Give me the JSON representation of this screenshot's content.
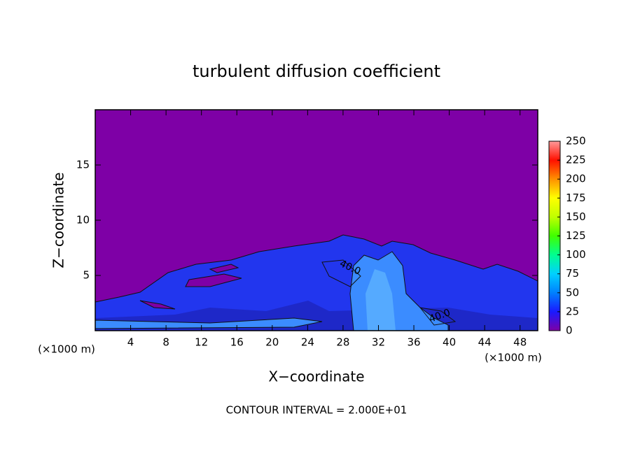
{
  "chart_data": {
    "type": "contour",
    "title": "turbulent diffusion coefficient",
    "xlabel": "X−coordinate",
    "ylabel": "Z−coordinate",
    "x_unit": "(×1000 m)",
    "footnote": "CONTOUR INTERVAL = 2.000E+01",
    "xlim": [
      0,
      50
    ],
    "ylim": [
      0,
      20
    ],
    "xticks": [
      4,
      8,
      12,
      16,
      20,
      24,
      28,
      32,
      36,
      40,
      44,
      48
    ],
    "yticks": [
      5,
      10,
      15
    ],
    "clim": [
      0,
      250
    ],
    "cticks": [
      0,
      25,
      50,
      75,
      100,
      125,
      150,
      175,
      200,
      225,
      250
    ],
    "colormap": [
      "#7e00a6",
      "#1a1aff",
      "#0080ff",
      "#00d0ff",
      "#00ff90",
      "#40ff00",
      "#c0ff00",
      "#ffff00",
      "#ff9000",
      "#ff1000",
      "#ff9a9a"
    ],
    "contour_labels": [
      {
        "value": 40,
        "label": "40.0"
      },
      {
        "value": 40,
        "label": "40.0"
      }
    ]
  }
}
